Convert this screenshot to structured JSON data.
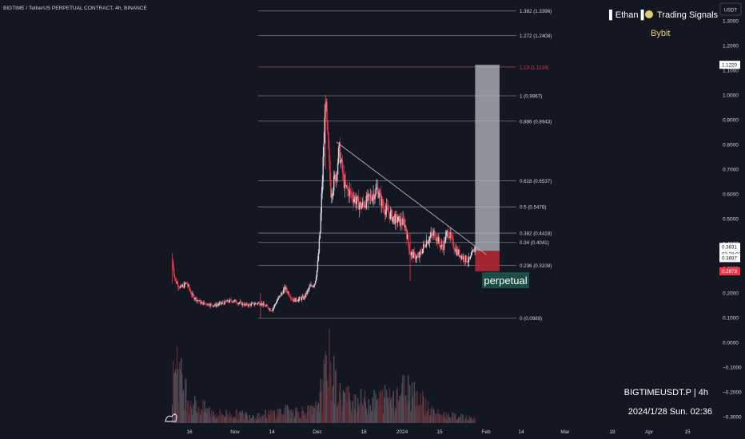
{
  "header": {
    "symbol_title": "BIGTIME / TetherUS PERPETUAL CONTRACT, 4h, BINANCE",
    "currency": "USDT",
    "author_left": "▌Ethan ▌",
    "author_right": "Trading Signals",
    "exchange": "Bybit"
  },
  "footer": {
    "ticker_line": "BIGTIMEUSDT.P | 4h",
    "datetime_line": "2024/1/28 Sun. 02:36"
  },
  "annotation": {
    "perpetual_label": "perpetual"
  },
  "colors": {
    "background": "#131722",
    "up": "#d1d4dc",
    "down": "#f23645",
    "fib_line": "#787b86",
    "target_box": "#b2b5be",
    "stop_box": "#b22833",
    "label_box": "#1b4d44",
    "current_price": "#ffffff",
    "stop_price": "#f23645"
  },
  "chart_data": {
    "type": "candlestick",
    "y_axis": {
      "ticks": [
        "1.3000",
        "1.2000",
        "1.1000",
        "1.0000",
        "0.9000",
        "0.8000",
        "0.7000",
        "0.6000",
        "0.5000",
        "0.4000",
        "0.3000",
        "0.2000",
        "0.1000",
        "0.0000",
        "−0.1000",
        "−0.2000",
        "−0.3000"
      ],
      "tick_values": [
        1.3,
        1.2,
        1.1,
        1.0,
        0.9,
        0.8,
        0.7,
        0.6,
        0.5,
        0.4,
        0.3,
        0.2,
        0.1,
        0.0,
        -0.1,
        -0.2,
        -0.3
      ],
      "range": [
        -0.3,
        1.4
      ]
    },
    "x_axis": {
      "labels": [
        "16",
        "Nov",
        "14",
        "Dec",
        "18",
        "2024",
        "15",
        "Feb",
        "14",
        "Mar",
        "18",
        "Apr",
        "15"
      ],
      "label_dates": [
        "2023-10-16",
        "2023-11-01",
        "2023-11-14",
        "2023-12-01",
        "2023-12-18",
        "2024-01-01",
        "2024-01-15",
        "2024-02-01",
        "2024-02-14",
        "2024-03-01",
        "2024-03-18",
        "2024-04-01",
        "2024-04-15"
      ]
    },
    "fib_levels": [
      {
        "label": "1.382 (1.3396)",
        "value": 1.3396
      },
      {
        "label": "1.272 (1.2408)",
        "value": 1.2408
      },
      {
        "label": "1.13 (1.1134)",
        "value": 1.1134
      },
      {
        "label": "1 (0.9967)",
        "value": 0.9967
      },
      {
        "label": "0.886 (0.8943)",
        "value": 0.8943
      },
      {
        "label": "0.618 (0.6537)",
        "value": 0.6537
      },
      {
        "label": "0.5 (0.5478)",
        "value": 0.5478
      },
      {
        "label": "0.382 (0.4418)",
        "value": 0.4418
      },
      {
        "label": "0.34 (0.4041)",
        "value": 0.4041
      },
      {
        "label": "0.236 (0.3108)",
        "value": 0.3108
      },
      {
        "label": "0 (0.0989)",
        "value": 0.0989
      }
    ],
    "price_badges": [
      {
        "label": "1.1220",
        "value": 1.122,
        "style": "target"
      },
      {
        "label": "0.3831",
        "value": 0.3831,
        "style": "current"
      },
      {
        "label": "01:23:02",
        "value": 0.3831,
        "style": "countdown"
      },
      {
        "label": "0.3697",
        "value": 0.3697,
        "style": "entry"
      },
      {
        "label": "0.2873",
        "value": 0.2873,
        "style": "stop"
      }
    ],
    "position": {
      "entry": 0.3697,
      "target": 1.122,
      "stop": 0.2873,
      "start_date": "2024-01-28",
      "end_date": "2024-02-06"
    },
    "trendline": {
      "start": {
        "date": "2023-12-08",
        "price": 0.81
      },
      "end": {
        "date": "2024-01-28",
        "price": 0.355
      }
    },
    "price_path": [
      {
        "date": "2023-10-10",
        "price": 0.33
      },
      {
        "date": "2023-10-11",
        "price": 0.25
      },
      {
        "date": "2023-10-13",
        "price": 0.22
      },
      {
        "date": "2023-10-15",
        "price": 0.24
      },
      {
        "date": "2023-10-17",
        "price": 0.19
      },
      {
        "date": "2023-10-20",
        "price": 0.16
      },
      {
        "date": "2023-10-25",
        "price": 0.15
      },
      {
        "date": "2023-10-31",
        "price": 0.17
      },
      {
        "date": "2023-11-05",
        "price": 0.15
      },
      {
        "date": "2023-11-10",
        "price": 0.16
      },
      {
        "date": "2023-11-14",
        "price": 0.13
      },
      {
        "date": "2023-11-16",
        "price": 0.17
      },
      {
        "date": "2023-11-19",
        "price": 0.22
      },
      {
        "date": "2023-11-22",
        "price": 0.17
      },
      {
        "date": "2023-11-26",
        "price": 0.18
      },
      {
        "date": "2023-11-28",
        "price": 0.22
      },
      {
        "date": "2023-11-30",
        "price": 0.24
      },
      {
        "date": "2023-12-01",
        "price": 0.3
      },
      {
        "date": "2023-12-02",
        "price": 0.45
      },
      {
        "date": "2023-12-03",
        "price": 0.7
      },
      {
        "date": "2023-12-04",
        "price": 0.98
      },
      {
        "date": "2023-12-05",
        "price": 0.78
      },
      {
        "date": "2023-12-06",
        "price": 0.6
      },
      {
        "date": "2023-12-08",
        "price": 0.69
      },
      {
        "date": "2023-12-09",
        "price": 0.78
      },
      {
        "date": "2023-12-11",
        "price": 0.63
      },
      {
        "date": "2023-12-14",
        "price": 0.59
      },
      {
        "date": "2023-12-17",
        "price": 0.55
      },
      {
        "date": "2023-12-20",
        "price": 0.58
      },
      {
        "date": "2023-12-23",
        "price": 0.62
      },
      {
        "date": "2023-12-25",
        "price": 0.55
      },
      {
        "date": "2023-12-29",
        "price": 0.5
      },
      {
        "date": "2024-01-02",
        "price": 0.48
      },
      {
        "date": "2024-01-04",
        "price": 0.36
      },
      {
        "date": "2024-01-07",
        "price": 0.34
      },
      {
        "date": "2024-01-10",
        "price": 0.41
      },
      {
        "date": "2024-01-13",
        "price": 0.44
      },
      {
        "date": "2024-01-16",
        "price": 0.38
      },
      {
        "date": "2024-01-18",
        "price": 0.45
      },
      {
        "date": "2024-01-21",
        "price": 0.37
      },
      {
        "date": "2024-01-24",
        "price": 0.34
      },
      {
        "date": "2024-01-26",
        "price": 0.33
      },
      {
        "date": "2024-01-28",
        "price": 0.383
      }
    ],
    "volume_profile": [
      {
        "date": "2023-10-10",
        "level": 0.35
      },
      {
        "date": "2023-10-11",
        "level": 1.0
      },
      {
        "date": "2023-10-13",
        "level": 0.55
      },
      {
        "date": "2023-10-17",
        "level": 0.25
      },
      {
        "date": "2023-10-25",
        "level": 0.12
      },
      {
        "date": "2023-11-10",
        "level": 0.1
      },
      {
        "date": "2023-11-19",
        "level": 0.15
      },
      {
        "date": "2023-11-30",
        "level": 0.15
      },
      {
        "date": "2023-12-03",
        "level": 0.45
      },
      {
        "date": "2023-12-05",
        "level": 0.8
      },
      {
        "date": "2023-12-09",
        "level": 0.35
      },
      {
        "date": "2023-12-20",
        "level": 0.25
      },
      {
        "date": "2024-01-04",
        "level": 0.45
      },
      {
        "date": "2024-01-13",
        "level": 0.12
      },
      {
        "date": "2024-01-28",
        "level": 0.05
      }
    ]
  }
}
